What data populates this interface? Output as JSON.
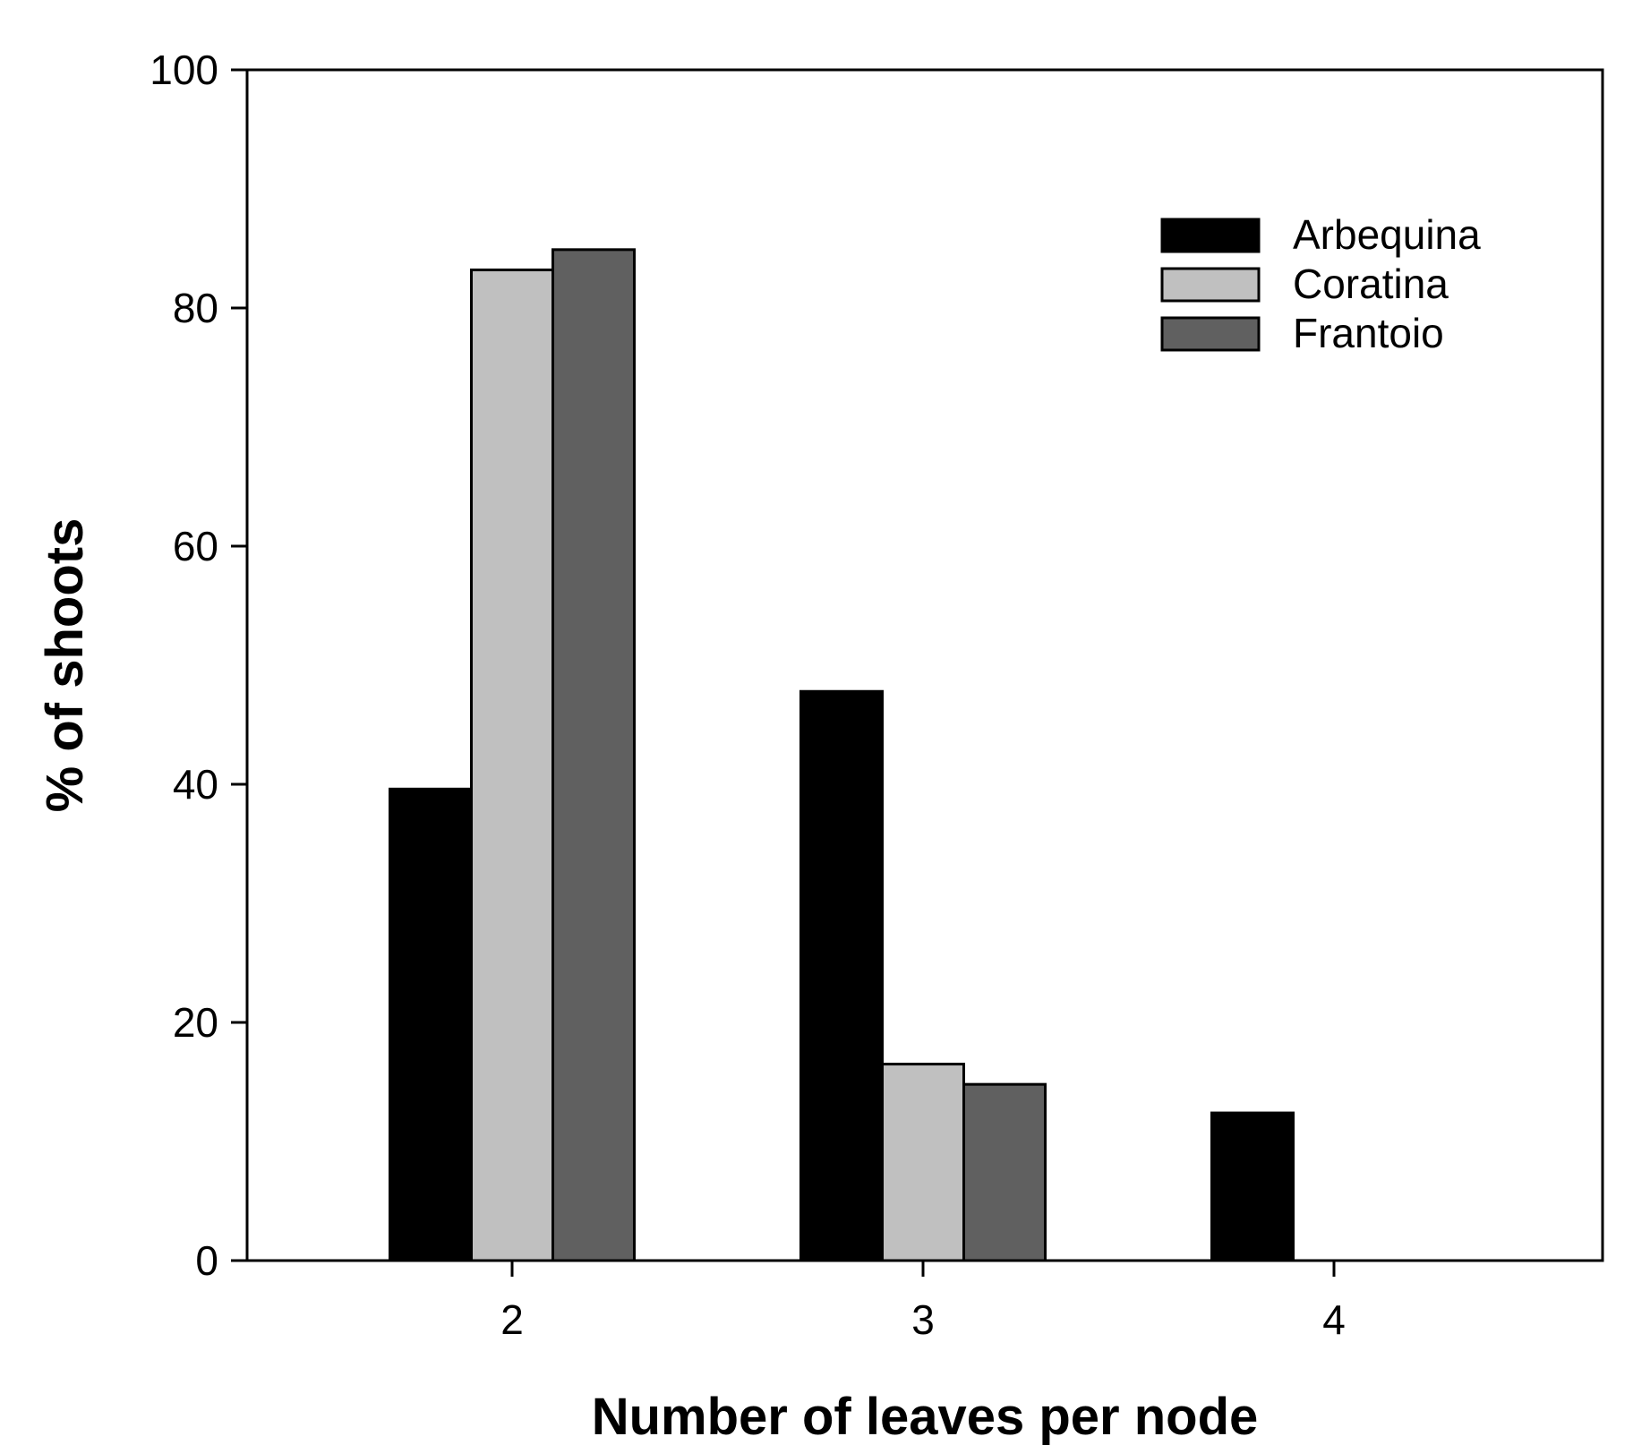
{
  "chart_data": {
    "type": "bar",
    "categories": [
      "2",
      "3",
      "4"
    ],
    "series": [
      {
        "name": "Arbequina",
        "values": [
          39.6,
          47.8,
          12.4
        ],
        "color": "#000000"
      },
      {
        "name": "Coratina",
        "values": [
          83.2,
          16.5,
          0
        ],
        "color": "#c0c0c0"
      },
      {
        "name": "Frantoio",
        "values": [
          84.9,
          14.8,
          0
        ],
        "color": "#606060"
      }
    ],
    "title": "",
    "xlabel": "Number of leaves per node",
    "ylabel": "% of shoots",
    "ylim": [
      0,
      100
    ],
    "yticks": [
      "0",
      "20",
      "40",
      "60",
      "80",
      "100"
    ],
    "grid": false,
    "legend_position": "top-right"
  }
}
